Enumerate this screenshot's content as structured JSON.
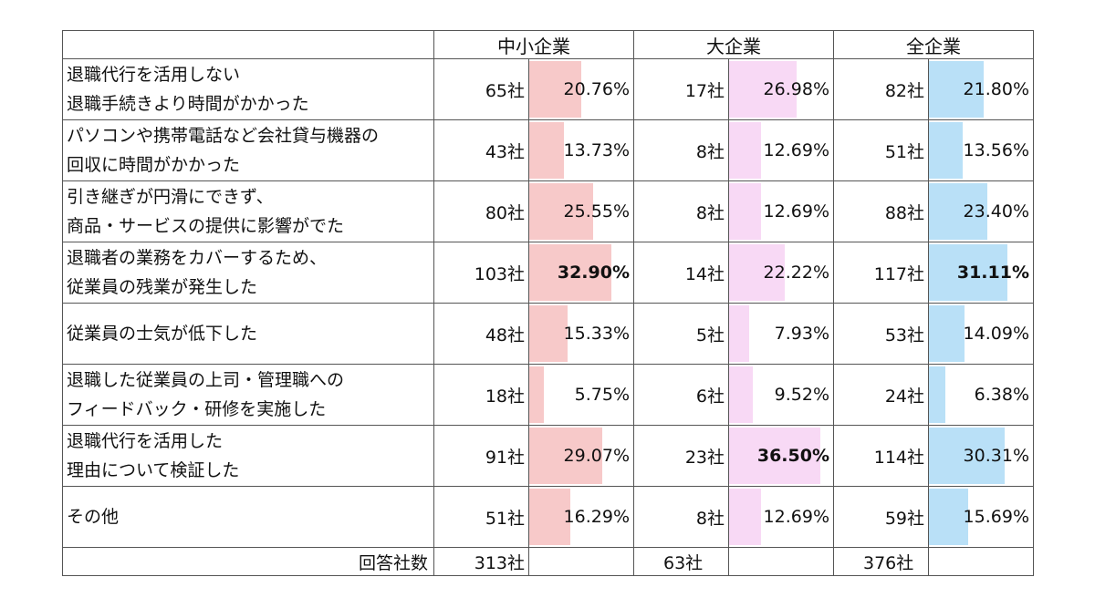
{
  "chart_data": {
    "type": "table",
    "groups": [
      {
        "name": "中小企業",
        "color": "#f7c9c9",
        "total": "313社"
      },
      {
        "name": "大企業",
        "color": "#f8d9f5",
        "total": "63社"
      },
      {
        "name": "全企業",
        "color": "#b9e0f7",
        "total": "376社"
      }
    ],
    "rows": [
      {
        "label": [
          "退職代行を活用しない",
          "退職手続きより時間がかかった"
        ],
        "cells": [
          [
            "65社",
            20.76,
            "20.76%",
            false
          ],
          [
            "17社",
            26.98,
            "26.98%",
            false
          ],
          [
            "82社",
            21.8,
            "21.80%",
            false
          ]
        ]
      },
      {
        "label": [
          "パソコンや携帯電話など会社貸与機器の",
          "回収に時間がかかった"
        ],
        "cells": [
          [
            "43社",
            13.73,
            "13.73%",
            false
          ],
          [
            "8社",
            12.69,
            "12.69%",
            false
          ],
          [
            "51社",
            13.56,
            "13.56%",
            false
          ]
        ]
      },
      {
        "label": [
          "引き継ぎが円滑にできず、",
          "商品・サービスの提供に影響がでた"
        ],
        "cells": [
          [
            "80社",
            25.55,
            "25.55%",
            false
          ],
          [
            "8社",
            12.69,
            "12.69%",
            false
          ],
          [
            "88社",
            23.4,
            "23.40%",
            false
          ]
        ]
      },
      {
        "label": [
          "退職者の業務をカバーするため、",
          "従業員の残業が発生した"
        ],
        "cells": [
          [
            "103社",
            32.9,
            "32.90%",
            true
          ],
          [
            "14社",
            22.22,
            "22.22%",
            false
          ],
          [
            "117社",
            31.11,
            "31.11%",
            true
          ]
        ]
      },
      {
        "label": [
          "従業員の士気が低下した"
        ],
        "cells": [
          [
            "48社",
            15.33,
            "15.33%",
            false
          ],
          [
            "5社",
            7.93,
            "7.93%",
            false
          ],
          [
            "53社",
            14.09,
            "14.09%",
            false
          ]
        ]
      },
      {
        "label": [
          "退職した従業員の上司・管理職への",
          "フィードバック・研修を実施した"
        ],
        "cells": [
          [
            "18社",
            5.75,
            "5.75%",
            false
          ],
          [
            "6社",
            9.52,
            "9.52%",
            false
          ],
          [
            "24社",
            6.38,
            "6.38%",
            false
          ]
        ]
      },
      {
        "label": [
          "退職代行を活用した",
          "理由について検証した"
        ],
        "cells": [
          [
            "91社",
            29.07,
            "29.07%",
            false
          ],
          [
            "23社",
            36.5,
            "36.50%",
            true
          ],
          [
            "114社",
            30.31,
            "30.31%",
            false
          ]
        ]
      },
      {
        "label": [
          "その他"
        ],
        "cells": [
          [
            "51社",
            16.29,
            "16.29%",
            false
          ],
          [
            "8社",
            12.69,
            "12.69%",
            false
          ],
          [
            "59社",
            15.69,
            "15.69%",
            false
          ]
        ]
      }
    ],
    "footer_label": "回答社数"
  }
}
